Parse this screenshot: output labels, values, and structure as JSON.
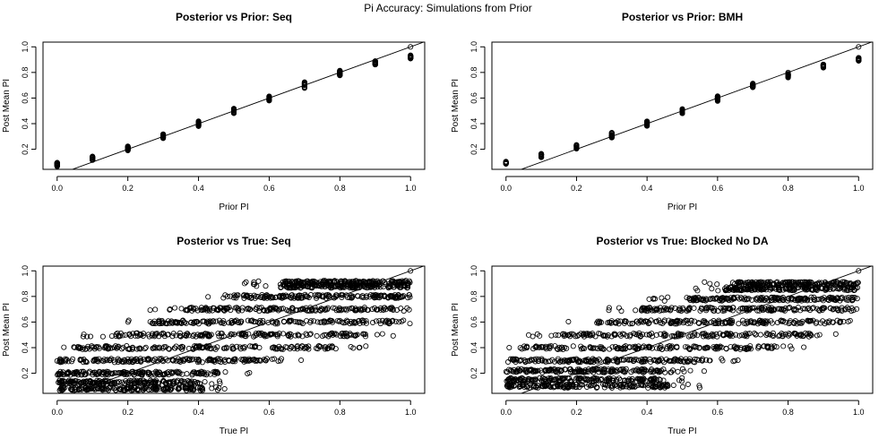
{
  "figure_title": "Pi Accuracy: Simulations from Prior",
  "colors": {
    "background": "#ffffff",
    "ink": "#000000"
  },
  "chart_data": [
    {
      "type": "scatter",
      "title": "Posterior vs Prior: Seq",
      "xlabel": "Prior PI",
      "ylabel": "Post Mean PI",
      "xlim": [
        0,
        1
      ],
      "ylim": [
        0.08,
        1
      ],
      "xticks": [
        "0.0",
        "0.2",
        "0.4",
        "0.6",
        "0.8",
        "1.0"
      ],
      "yticks": [
        "0.2",
        "0.4",
        "0.6",
        "0.8",
        "1.0"
      ],
      "reference_line": "y = x",
      "point_style": "open-circle",
      "spread_x": 0,
      "clusters": [
        {
          "x": 0.0,
          "y_low": 0.065,
          "y_high": 0.095
        },
        {
          "x": 0.1,
          "y_low": 0.115,
          "y_high": 0.145
        },
        {
          "x": 0.2,
          "y_low": 0.19,
          "y_high": 0.225
        },
        {
          "x": 0.3,
          "y_low": 0.285,
          "y_high": 0.32
        },
        {
          "x": 0.4,
          "y_low": 0.38,
          "y_high": 0.42
        },
        {
          "x": 0.5,
          "y_low": 0.48,
          "y_high": 0.52
        },
        {
          "x": 0.6,
          "y_low": 0.58,
          "y_high": 0.615
        },
        {
          "x": 0.7,
          "y_low": 0.675,
          "y_high": 0.725
        },
        {
          "x": 0.8,
          "y_low": 0.775,
          "y_high": 0.815
        },
        {
          "x": 0.9,
          "y_low": 0.86,
          "y_high": 0.89
        },
        {
          "x": 1.0,
          "y_low": 0.905,
          "y_high": 0.935
        },
        {
          "x": 1.0,
          "y_low": 1.0,
          "y_high": 1.0
        }
      ]
    },
    {
      "type": "scatter",
      "title": "Posterior vs Prior: BMH",
      "xlabel": "Prior PI",
      "ylabel": "Post Mean PI",
      "xlim": [
        0,
        1
      ],
      "ylim": [
        0.08,
        1
      ],
      "xticks": [
        "0.0",
        "0.2",
        "0.4",
        "0.6",
        "0.8",
        "1.0"
      ],
      "yticks": [
        "0.2",
        "0.4",
        "0.6",
        "0.8",
        "1.0"
      ],
      "reference_line": "y = x",
      "point_style": "open-circle",
      "spread_x": 0,
      "clusters": [
        {
          "x": 0.0,
          "y_low": 0.085,
          "y_high": 0.105
        },
        {
          "x": 0.1,
          "y_low": 0.135,
          "y_high": 0.165
        },
        {
          "x": 0.2,
          "y_low": 0.2,
          "y_high": 0.235
        },
        {
          "x": 0.3,
          "y_low": 0.29,
          "y_high": 0.33
        },
        {
          "x": 0.4,
          "y_low": 0.38,
          "y_high": 0.42
        },
        {
          "x": 0.5,
          "y_low": 0.48,
          "y_high": 0.52
        },
        {
          "x": 0.6,
          "y_low": 0.575,
          "y_high": 0.62
        },
        {
          "x": 0.7,
          "y_low": 0.68,
          "y_high": 0.715
        },
        {
          "x": 0.8,
          "y_low": 0.76,
          "y_high": 0.8
        },
        {
          "x": 0.9,
          "y_low": 0.835,
          "y_high": 0.865
        },
        {
          "x": 1.0,
          "y_low": 0.89,
          "y_high": 0.915
        },
        {
          "x": 1.0,
          "y_low": 1.0,
          "y_high": 1.0
        }
      ]
    },
    {
      "type": "scatter",
      "title": "Posterior vs True: Seq",
      "xlabel": "True PI",
      "ylabel": "Post Mean PI",
      "xlim": [
        0,
        1
      ],
      "ylim": [
        0.08,
        1
      ],
      "xticks": [
        "0.0",
        "0.2",
        "0.4",
        "0.6",
        "0.8",
        "1.0"
      ],
      "yticks": [
        "0.2",
        "0.4",
        "0.6",
        "0.8",
        "1.0"
      ],
      "reference_line": "y = x",
      "point_style": "open-circle",
      "spread_x": 0.1,
      "bands": [
        {
          "y": 0.08,
          "x_min": 0.0,
          "x_max": 0.42
        },
        {
          "y": 0.13,
          "x_min": 0.0,
          "x_max": 0.4
        },
        {
          "y": 0.2,
          "x_min": 0.0,
          "x_max": 0.46
        },
        {
          "y": 0.3,
          "x_min": 0.0,
          "x_max": 0.6
        },
        {
          "y": 0.4,
          "x_min": 0.04,
          "x_max": 0.78
        },
        {
          "y": 0.5,
          "x_min": 0.15,
          "x_max": 0.87
        },
        {
          "y": 0.6,
          "x_min": 0.26,
          "x_max": 0.95
        },
        {
          "y": 0.7,
          "x_min": 0.36,
          "x_max": 1.0
        },
        {
          "y": 0.8,
          "x_min": 0.5,
          "x_max": 1.0
        },
        {
          "y": 0.88,
          "x_min": 0.63,
          "x_max": 1.0
        },
        {
          "y": 0.91,
          "x_min": 0.63,
          "x_max": 1.0
        }
      ],
      "extra_points": [
        {
          "x": 1.0,
          "y": 1.0
        }
      ]
    },
    {
      "type": "scatter",
      "title": "Posterior vs True: Blocked No DA",
      "xlabel": "True PI",
      "ylabel": "Post Mean PI",
      "xlim": [
        0,
        1
      ],
      "ylim": [
        0.08,
        1
      ],
      "xticks": [
        "0.0",
        "0.2",
        "0.4",
        "0.6",
        "0.8",
        "1.0"
      ],
      "yticks": [
        "0.2",
        "0.4",
        "0.6",
        "0.8",
        "1.0"
      ],
      "reference_line": "y = x",
      "point_style": "open-circle",
      "spread_x": 0.1,
      "bands": [
        {
          "y": 0.1,
          "x_min": 0.0,
          "x_max": 0.46
        },
        {
          "y": 0.15,
          "x_min": 0.0,
          "x_max": 0.44
        },
        {
          "y": 0.22,
          "x_min": 0.0,
          "x_max": 0.48
        },
        {
          "y": 0.3,
          "x_min": 0.0,
          "x_max": 0.58
        },
        {
          "y": 0.4,
          "x_min": 0.04,
          "x_max": 0.76
        },
        {
          "y": 0.5,
          "x_min": 0.16,
          "x_max": 0.87
        },
        {
          "y": 0.6,
          "x_min": 0.26,
          "x_max": 0.95
        },
        {
          "y": 0.7,
          "x_min": 0.38,
          "x_max": 1.0
        },
        {
          "y": 0.78,
          "x_min": 0.5,
          "x_max": 1.0
        },
        {
          "y": 0.86,
          "x_min": 0.62,
          "x_max": 1.0
        },
        {
          "y": 0.9,
          "x_min": 0.64,
          "x_max": 1.0
        }
      ],
      "extra_points": [
        {
          "x": 1.0,
          "y": 1.0
        }
      ]
    }
  ]
}
